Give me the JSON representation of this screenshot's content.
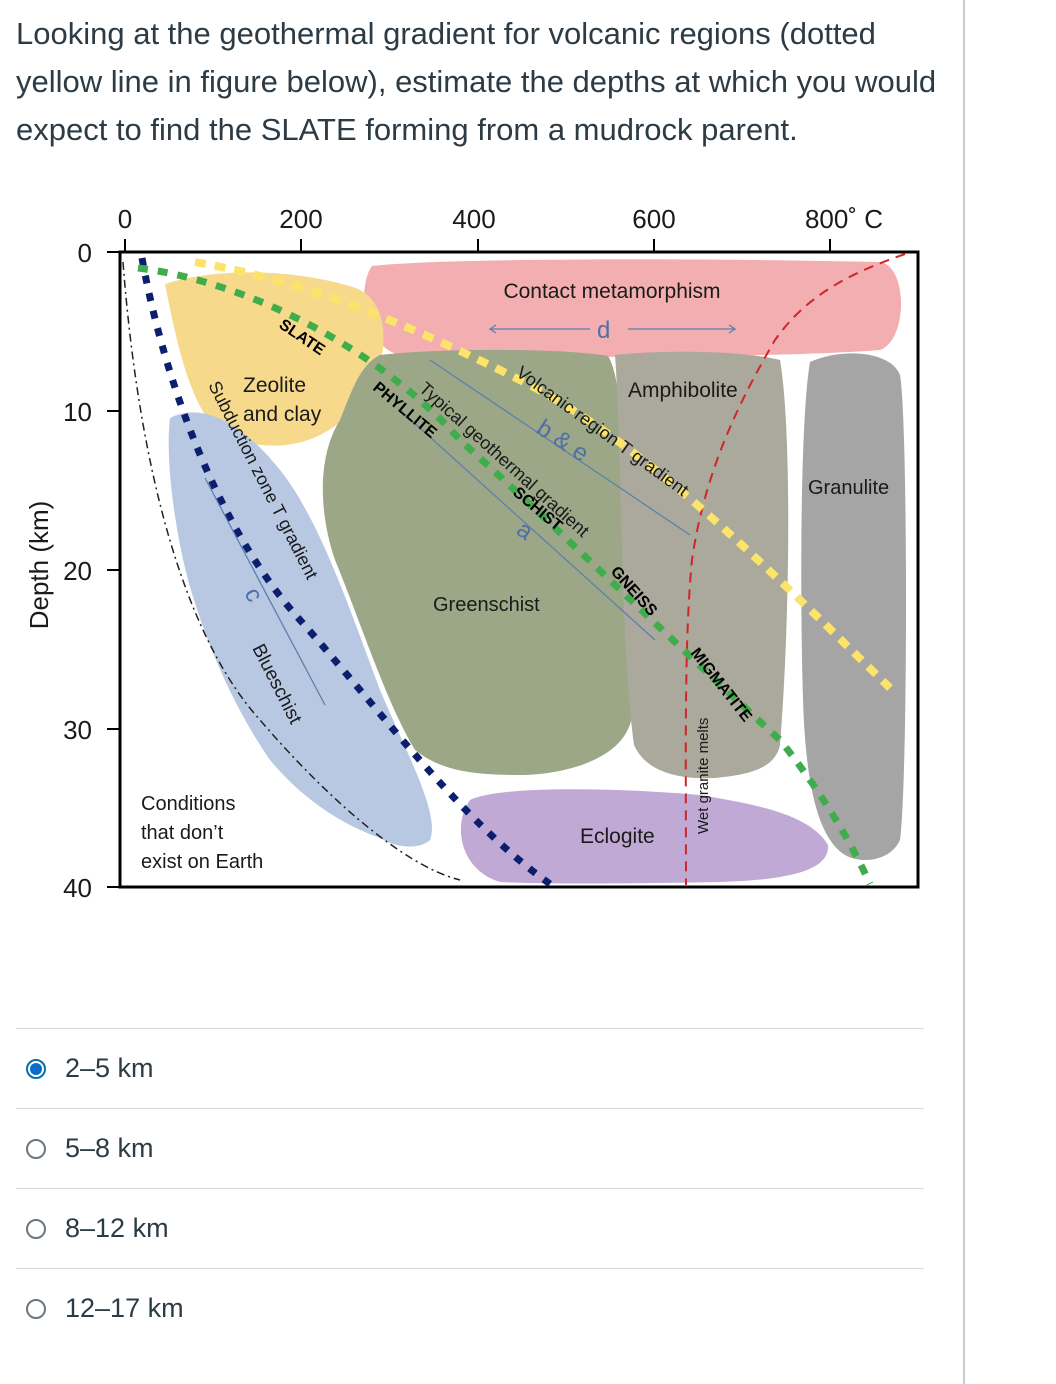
{
  "question": {
    "text": "Looking at the geothermal gradient for volcanic regions (dotted yellow line in figure below), estimate the depths at which you would expect to find the SLATE forming from a mudrock parent."
  },
  "diagram": {
    "x_ticks": [
      "0",
      "200",
      "400",
      "600",
      "800˚ C"
    ],
    "y_axis_label": "Depth (km)",
    "y_ticks": [
      "0",
      "10",
      "20",
      "30",
      "40"
    ],
    "facies": {
      "contact": "Contact metamorphism",
      "zeolite_1": "Zeolite",
      "zeolite_2": "and clay",
      "amphibolite": "Amphibolite",
      "granulite": "Granulite",
      "greenschist": "Greenschist",
      "blueschist": "Blueschist",
      "eclogite": "Eclogite",
      "no_earth_1": "Conditions",
      "no_earth_2": "that don’t",
      "no_earth_3": "exist on Earth"
    },
    "rocks": {
      "slate": "SLATE",
      "phyllite": "PHYLLITE",
      "schist": "SCHIST",
      "gneiss": "GNEISS",
      "migmatite": "MIGMATITE"
    },
    "gradients": {
      "volcanic": "Volcanic region T gradient",
      "typical": "Typical geothermal gradient",
      "subduction": "Subduction zone T gradient",
      "wet_granite": "Wet granite melts"
    },
    "path_letters": {
      "a": "a",
      "be": "b & e",
      "c": "c",
      "d": "d"
    },
    "colors": {
      "contact": "#f2aeb0",
      "zeolite": "#f7d98b",
      "greenschist": "#9ba787",
      "amphibolite": "#aba89c",
      "granulite": "#a5a5a5",
      "blueschist": "#b8c8e3",
      "eclogite": "#c1a9d6",
      "volcanic_gradient": "#fce36a",
      "typical_gradient": "#3fad4c",
      "subduction_gradient": "#0b1f6e",
      "melt_curve": "#d0262a"
    }
  },
  "answers": [
    {
      "label": "2–5 km",
      "selected": true
    },
    {
      "label": "5–8 km",
      "selected": false
    },
    {
      "label": "8–12 km",
      "selected": false
    },
    {
      "label": "12–17 km",
      "selected": false
    }
  ]
}
